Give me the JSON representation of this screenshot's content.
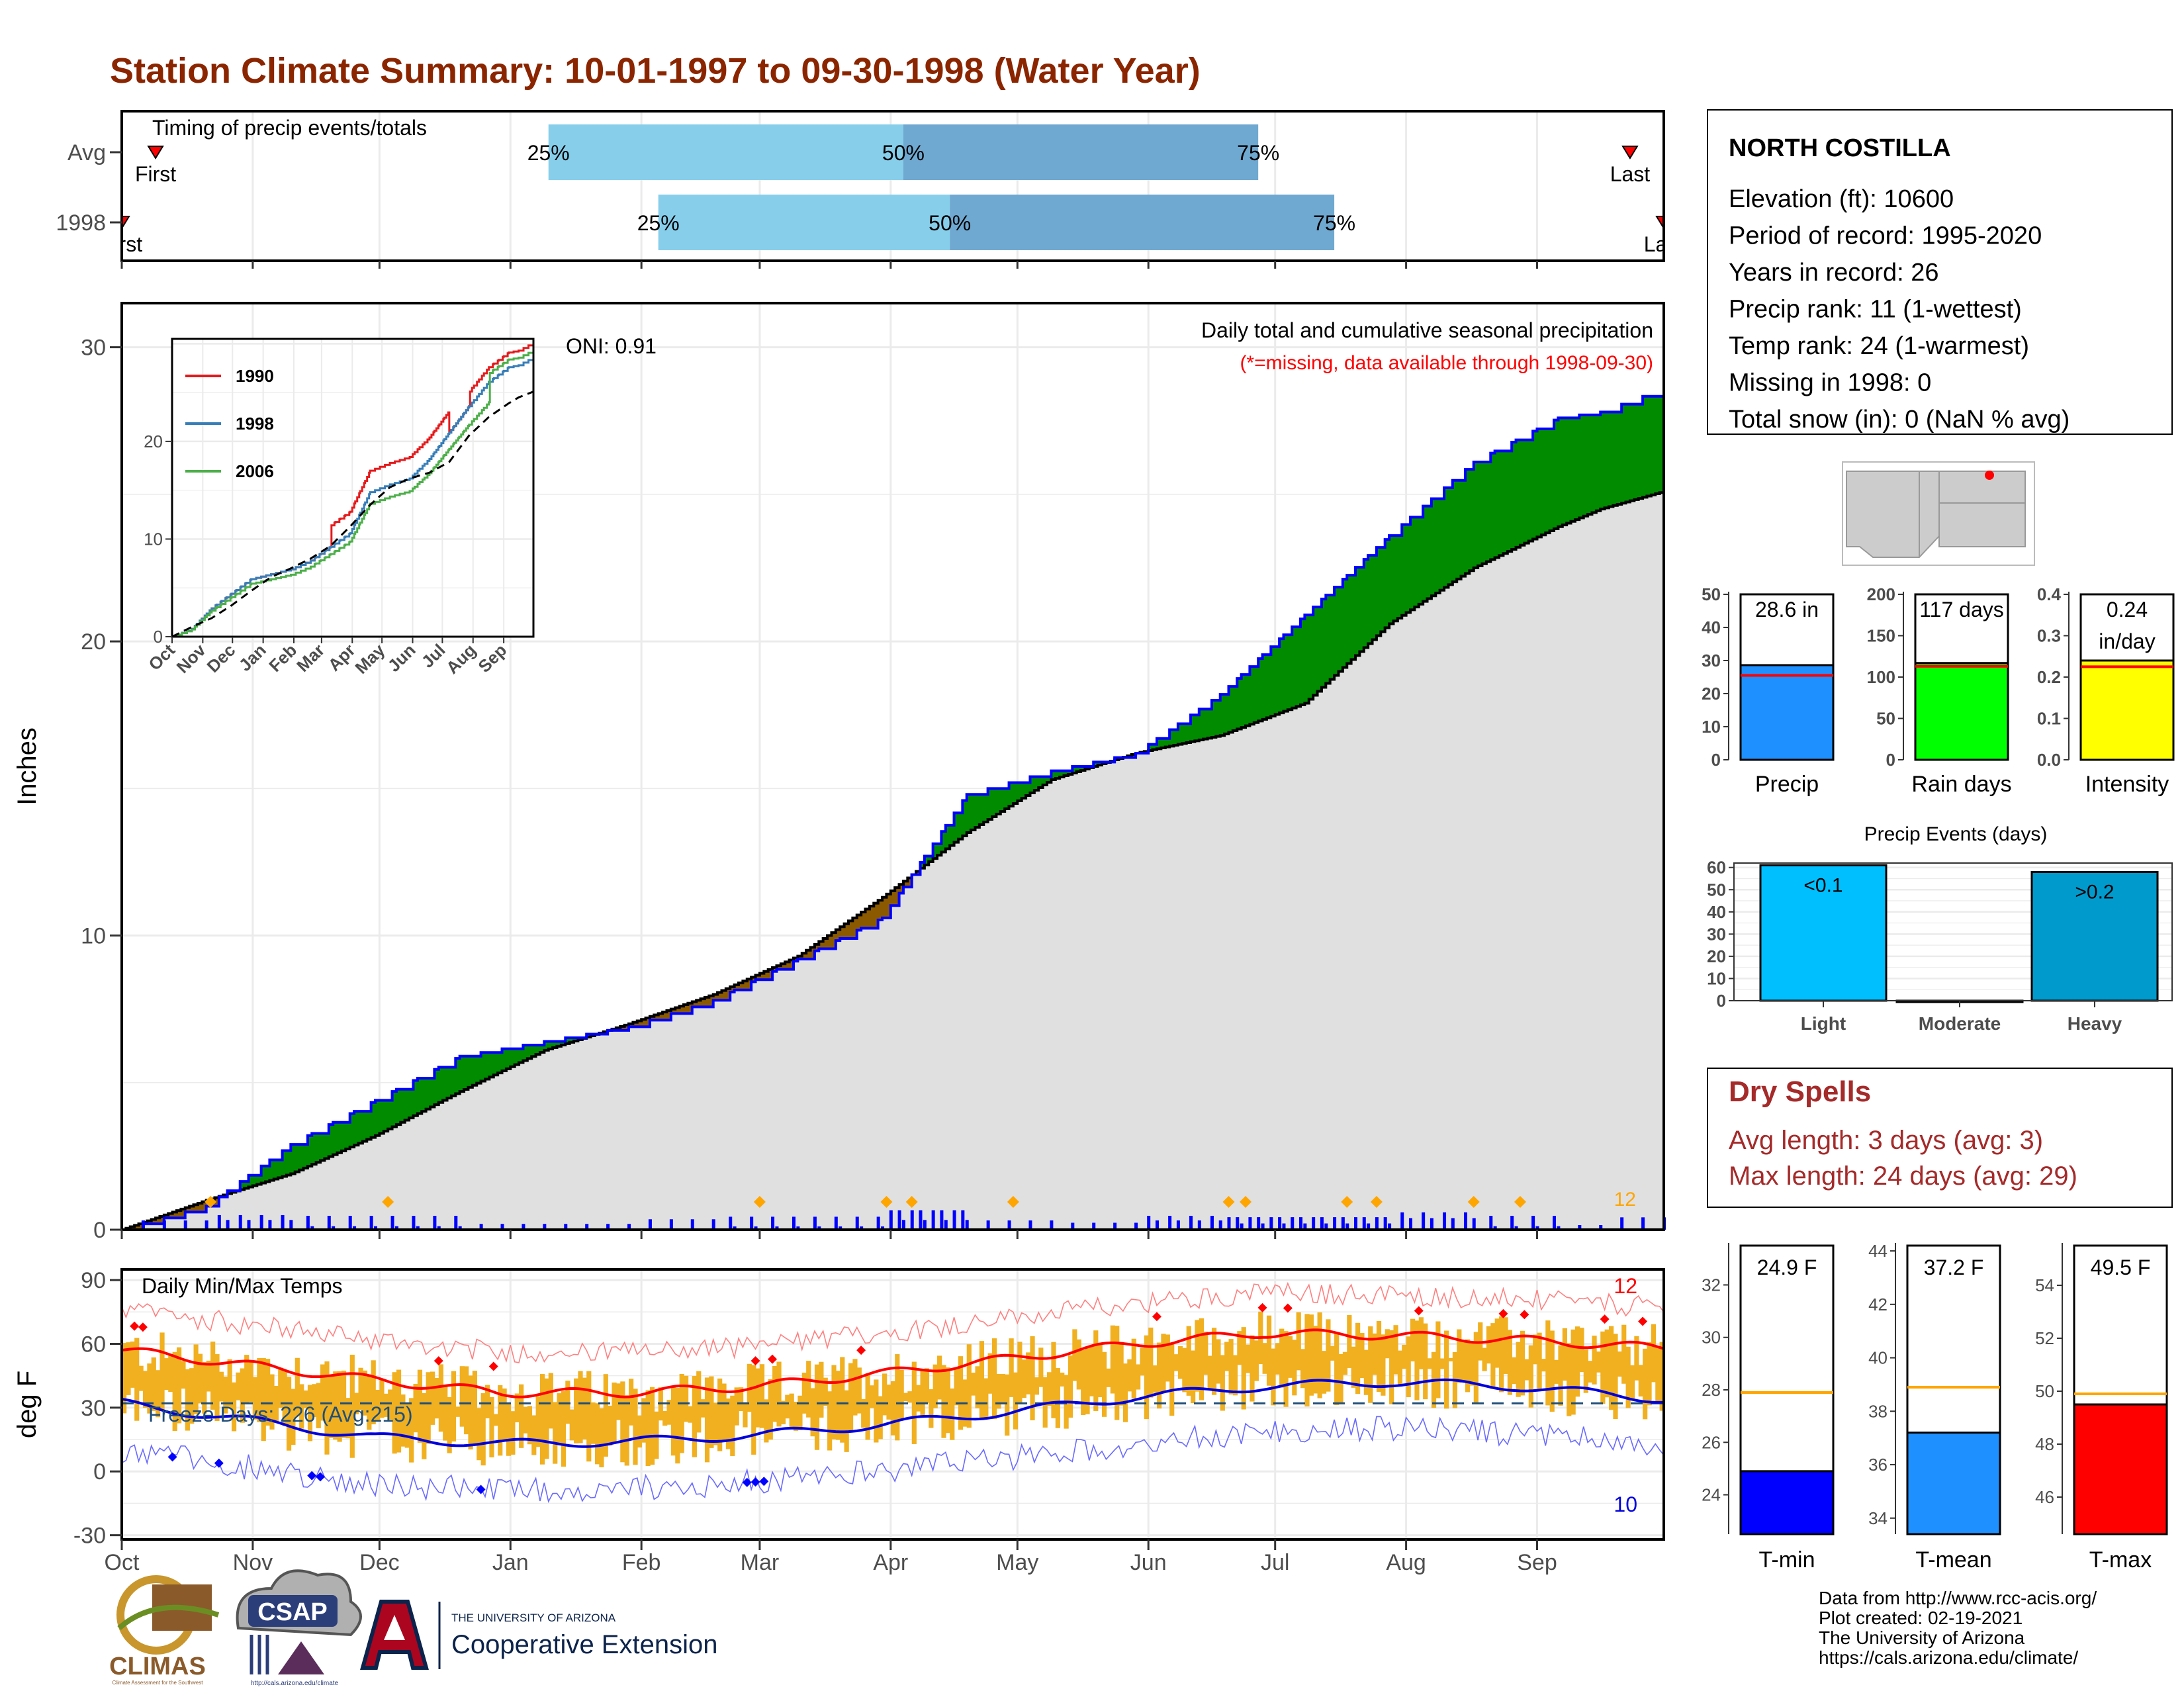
{
  "title": "Station Climate Summary: 10-01-1997 to 09-30-1998 (Water Year)",
  "colors": {
    "title": "#8b2500",
    "light_blue": "#87ceeb",
    "steel_blue": "#6fa8d0",
    "green": "#008b00",
    "brown": "#8b5a00",
    "gray_fill": "#e0e0e0",
    "precip_blue": "#0000ff",
    "temp_bar": "#f0b020",
    "red": "#ff0000",
    "blue": "#0000ff",
    "dry_red": "#a52a2a"
  },
  "timing": {
    "label": "Timing of precip events/totals",
    "rows": [
      {
        "name": "Avg",
        "first_label": "First",
        "last_label": "Last",
        "q25": "25%",
        "q50": "50%",
        "q75": "75%",
        "first_doy": 8,
        "last_doy": 357,
        "p25_doy": 101,
        "p50_doy": 185,
        "p75_doy": 269
      },
      {
        "name": "1998",
        "first_label": "First",
        "last_label": "Last",
        "q25": "25%",
        "q50": "50%",
        "q75": "75%",
        "first_doy": 0,
        "last_doy": 365,
        "p25_doy": 127,
        "p50_doy": 196,
        "p75_doy": 287
      }
    ]
  },
  "precip": {
    "y_label": "Inches",
    "title": "Daily total and cumulative seasonal precipitation",
    "subtitle": "(*=missing, data available through 1998-09-30)",
    "oni": "ONI: 0.91",
    "count": "12",
    "yticks": [
      "0",
      "10",
      "20",
      "30"
    ]
  },
  "months": [
    "Oct",
    "Nov",
    "Dec",
    "Jan",
    "Feb",
    "Mar",
    "Apr",
    "May",
    "Jun",
    "Jul",
    "Aug",
    "Sep"
  ],
  "inset": {
    "months": [
      "Oct",
      "Nov",
      "Dec",
      "Jan",
      "Feb",
      "Mar",
      "Apr",
      "May",
      "Jun",
      "Jul",
      "Aug",
      "Sep"
    ],
    "yticks": [
      "0",
      "10",
      "20"
    ],
    "legend": [
      {
        "name": "1990",
        "color": "#e41a1c"
      },
      {
        "name": "1998",
        "color": "#377eb8"
      },
      {
        "name": "2006",
        "color": "#4daf4a"
      }
    ]
  },
  "station": {
    "name": "NORTH COSTILLA",
    "lines": [
      "Elevation (ft): 10600",
      "Period of record: 1995-2020",
      "Years in record: 26",
      "Precip rank: 11 (1-wettest)",
      "Temp rank: 24 (1-warmest)",
      "Missing in 1998: 0",
      "Total snow (in): 0 (NaN % avg)"
    ]
  },
  "summary_bars": [
    {
      "name": "Precip",
      "value": 28.6,
      "avg": 25.5,
      "max": 50,
      "ticks": [
        "0",
        "10",
        "20",
        "30",
        "40",
        "50"
      ],
      "label": "28.6 in",
      "color": "#1e90ff"
    },
    {
      "name": "Rain days",
      "value": 117,
      "avg": 113,
      "max": 200,
      "ticks": [
        "0",
        "50",
        "100",
        "150",
        "200"
      ],
      "label": "117 days",
      "color": "#00ff00"
    },
    {
      "name": "Intensity",
      "value": 0.24,
      "avg": 0.225,
      "max": 0.4,
      "ticks": [
        "0.0",
        "0.1",
        "0.2",
        "0.3",
        "0.4"
      ],
      "label": "0.24",
      "label2": "in/day",
      "color": "#ffff00"
    }
  ],
  "events": {
    "title": "Precip Events (days)",
    "yticks": [
      "0",
      "10",
      "20",
      "30",
      "40",
      "50",
      "60"
    ],
    "bars": [
      {
        "name": "Light",
        "value": 61,
        "label": "<0.1",
        "color": "#00bfff"
      },
      {
        "name": "Moderate",
        "value": 0,
        "label": "",
        "color": "#1e90ff"
      },
      {
        "name": "Heavy",
        "value": 58,
        "label": ">0.2",
        "color": "#009acd"
      }
    ]
  },
  "dry_spells": {
    "title": "Dry Spells",
    "avg": "Avg length: 3 days (avg: 3)",
    "max": "Max length: 24 days (avg: 29)"
  },
  "temps": {
    "y_label": "deg F",
    "title": "Daily Min/Max Temps",
    "freeze": "Freeze Days: 226 (Avg:215)",
    "hot_count": "12",
    "cold_count": "10",
    "yticks": [
      "-30",
      "0",
      "30",
      "60",
      "90"
    ]
  },
  "temp_bars": [
    {
      "name": "T-min",
      "value": 24.9,
      "avg": 27.9,
      "min": 22.5,
      "max": 33.5,
      "ticks": [
        "24",
        "26",
        "28",
        "30",
        "32"
      ],
      "label": "24.9 F",
      "color": "#0000ff"
    },
    {
      "name": "T-mean",
      "value": 37.2,
      "avg": 38.9,
      "min": 33.4,
      "max": 44.2,
      "ticks": [
        "34",
        "36",
        "38",
        "40",
        "42",
        "44"
      ],
      "label": "37.2 F",
      "color": "#1e90ff"
    },
    {
      "name": "T-max",
      "value": 49.5,
      "avg": 49.9,
      "min": 44.6,
      "max": 55.5,
      "ticks": [
        "46",
        "48",
        "50",
        "52",
        "54"
      ],
      "label": "49.5 F",
      "color": "#ff0000"
    }
  ],
  "footer": {
    "credits": [
      "Data from http://www.rcc-acis.org/",
      "Plot created: 02-19-2021",
      "The University of Arizona",
      "https://cals.arizona.edu/climate/"
    ],
    "climas": "CLIMAS",
    "climas_sub": "Climate Assessment for the Southwest",
    "csap": "CSAP",
    "csap_url": "http://cals.arizona.edu/climate",
    "ua_small": "THE UNIVERSITY OF ARIZONA",
    "ua_big": "Cooperative Extension"
  },
  "chart_data": [
    {
      "type": "area",
      "title": "Daily total and cumulative seasonal precipitation",
      "ylabel": "Inches",
      "ylim": [
        0,
        31.5
      ],
      "x_unit": "day of water year (Oct 1 = 0)",
      "series": [
        {
          "name": "1998",
          "x": [
            0,
            20,
            40,
            60,
            80,
            100,
            120,
            140,
            160,
            180,
            200,
            220,
            240,
            260,
            280,
            300,
            320,
            340,
            350,
            365
          ],
          "values": [
            0,
            0.8,
            2.9,
            4.4,
            5.9,
            6.4,
            6.9,
            7.8,
            9.2,
            10.6,
            14.8,
            15.6,
            16.2,
            18.2,
            20.9,
            23.6,
            26.1,
            27.6,
            27.8,
            28.6
          ]
        },
        {
          "name": "Average",
          "x": [
            0,
            20,
            40,
            60,
            80,
            100,
            120,
            140,
            160,
            180,
            200,
            220,
            240,
            260,
            280,
            300,
            320,
            340,
            350,
            365
          ],
          "values": [
            0,
            1,
            1.9,
            3.2,
            4.7,
            6.1,
            7.0,
            8.0,
            9.3,
            11.3,
            13.5,
            15.3,
            16.2,
            16.8,
            17.9,
            20.6,
            22.5,
            23.9,
            24.5,
            25.1
          ]
        }
      ]
    },
    {
      "type": "line",
      "title": "Daily Min/Max Temps",
      "ylabel": "deg F",
      "ylim": [
        -32,
        95
      ],
      "x_unit": "day of water year (Oct 1 = 0)",
      "series": [
        {
          "name": "Avg max",
          "x": [
            0,
            30,
            60,
            90,
            120,
            150,
            180,
            210,
            240,
            270,
            300,
            330,
            365
          ],
          "values": [
            57,
            50,
            43,
            37,
            37,
            40,
            46,
            53,
            60,
            65,
            64,
            62,
            58
          ]
        },
        {
          "name": "Avg min",
          "x": [
            0,
            30,
            60,
            90,
            120,
            150,
            180,
            210,
            240,
            270,
            300,
            330,
            365
          ],
          "values": [
            32,
            24,
            16,
            13,
            14,
            17,
            22,
            28,
            35,
            40,
            42,
            40,
            34
          ]
        },
        {
          "name": "Freeze line",
          "x": [
            0,
            365
          ],
          "values": [
            32,
            32
          ]
        }
      ]
    }
  ]
}
